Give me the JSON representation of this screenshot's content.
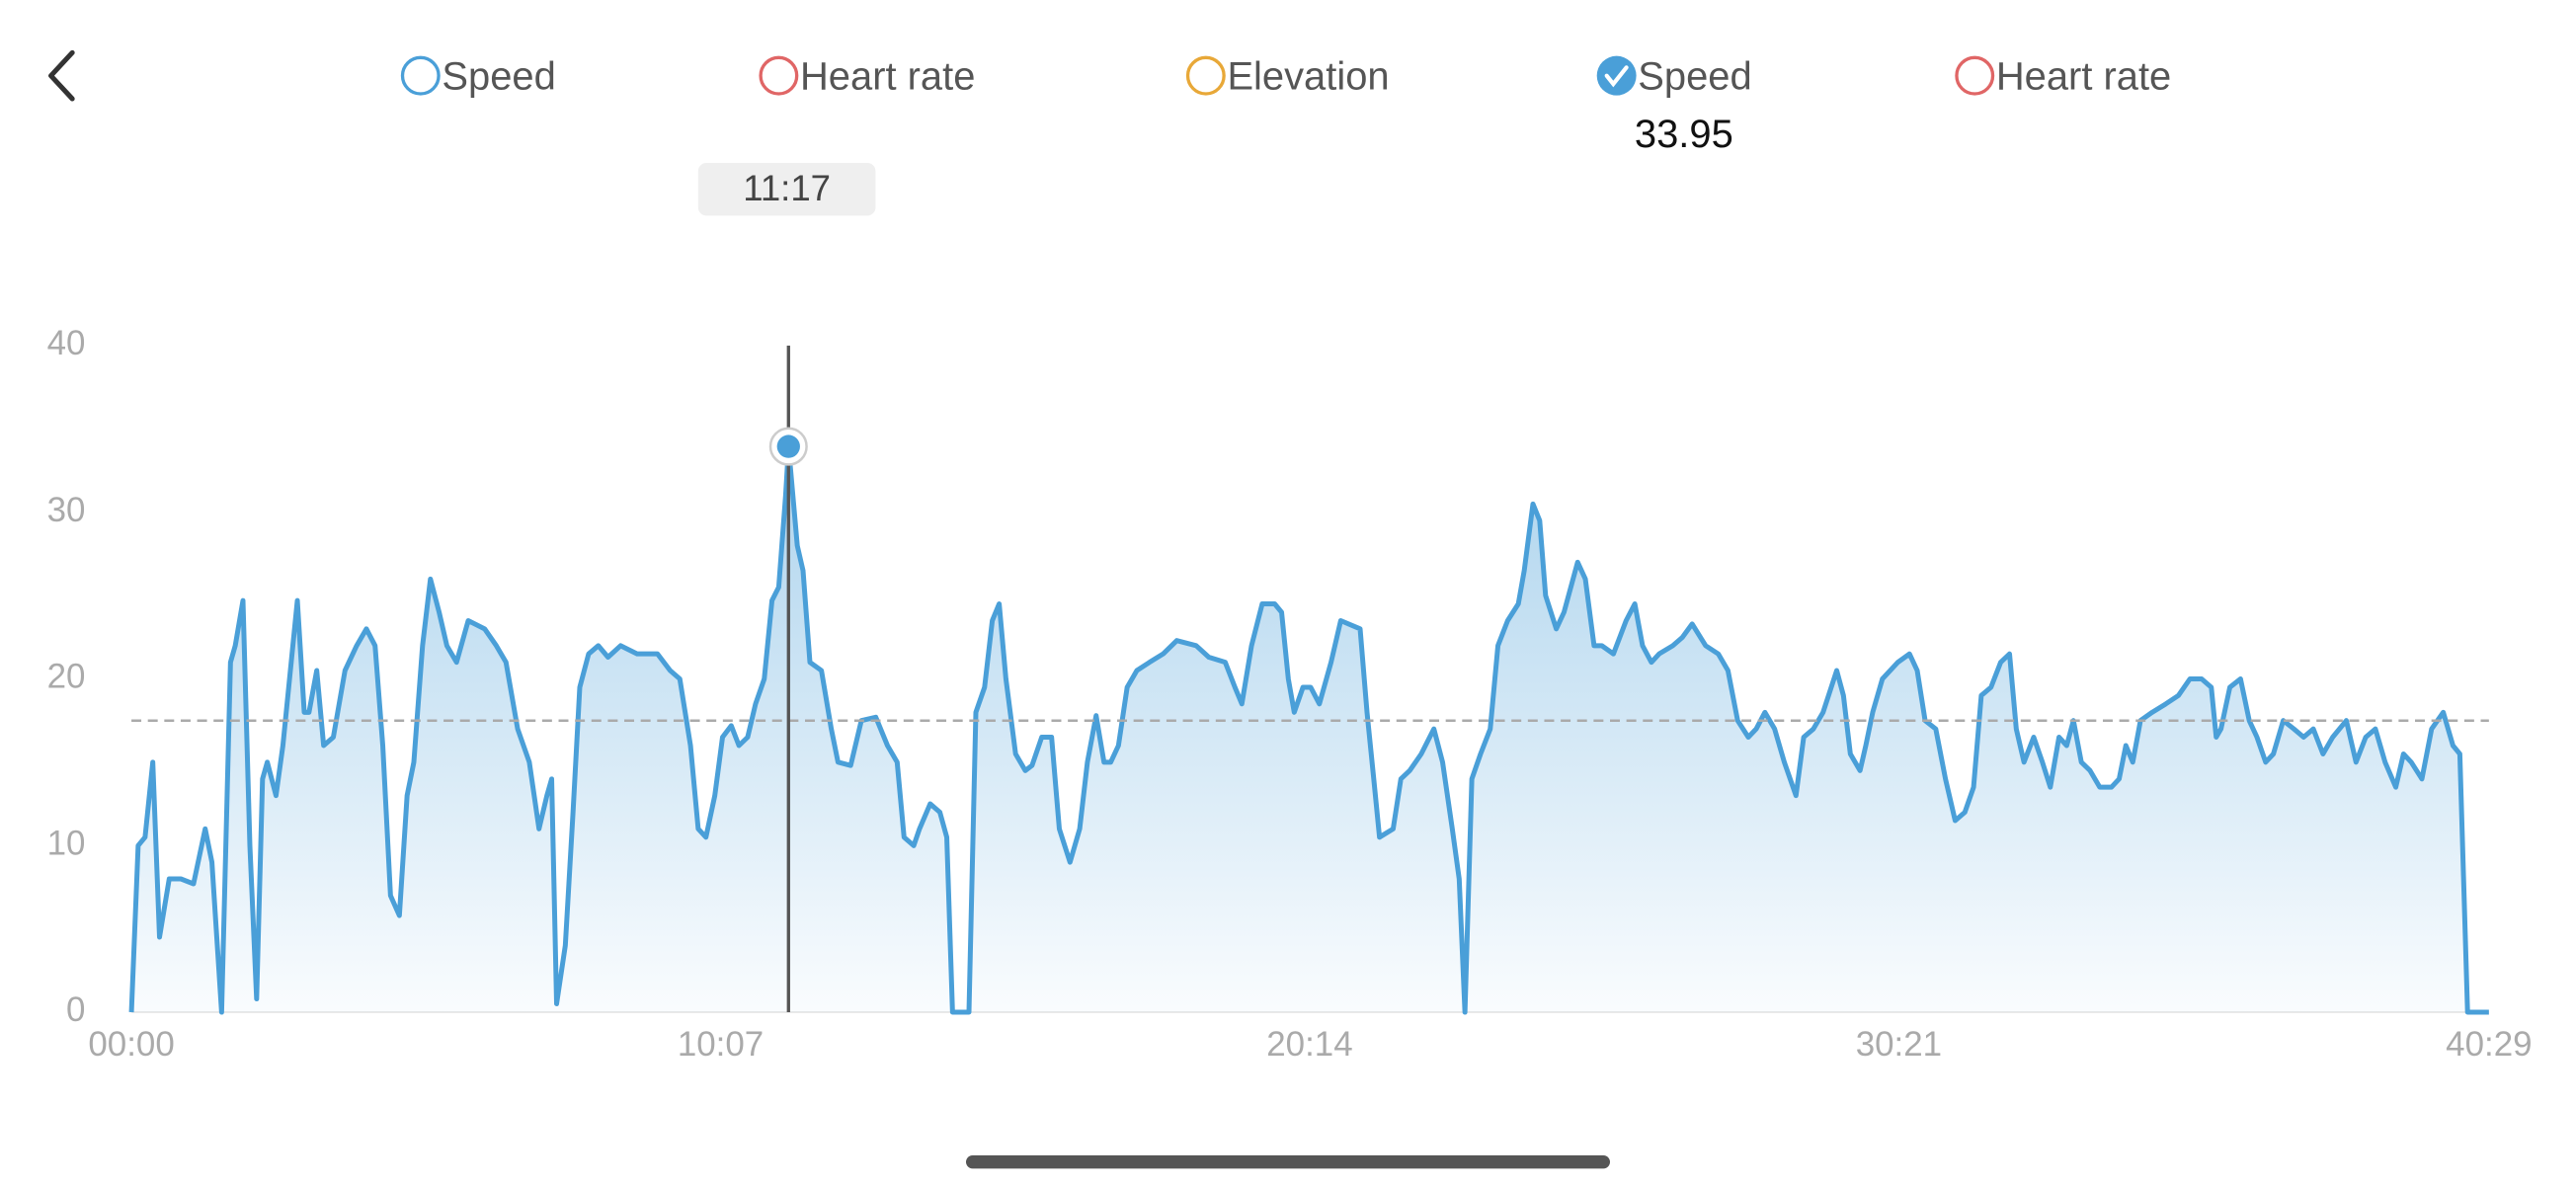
{
  "chart_data": {
    "type": "line",
    "metric_tabs": [
      {
        "label": "Speed",
        "color": "#4a9fd8"
      },
      {
        "label": "Heart rate",
        "color": "#e06666"
      },
      {
        "label": "Elevation",
        "color": "#e8a838"
      }
    ],
    "compare_tabs": [
      {
        "label": "Heart rate",
        "color": "#e06666"
      }
    ],
    "tooltip": {
      "time": "11:17",
      "x": 677,
      "value": 33.95
    },
    "reference_line": 17.5,
    "xlim": [
      0,
      2429
    ],
    "xticks": [
      {
        "value": 0,
        "label": "00:00"
      },
      {
        "value": 607,
        "label": "10:07"
      },
      {
        "value": 1214,
        "label": "20:14"
      },
      {
        "value": 1821,
        "label": "30:21"
      },
      {
        "value": 2429,
        "label": "40:29"
      }
    ],
    "ylim": [
      0,
      40
    ],
    "yticks": [
      0,
      10,
      20,
      30,
      40
    ],
    "grid": false,
    "x": [
      0,
      7,
      14,
      22,
      29,
      39,
      51,
      64,
      76,
      83,
      93,
      102,
      107,
      115,
      122,
      129,
      135,
      140,
      149,
      156,
      171,
      178,
      183,
      191,
      198,
      208,
      220,
      232,
      242,
      251,
      259,
      267,
      276,
      284,
      291,
      300,
      308,
      317,
      325,
      335,
      347,
      364,
      376,
      386,
      398,
      410,
      420,
      428,
      433,
      438,
      447,
      455,
      462,
      471,
      481,
      491,
      504,
      521,
      542,
      555,
      565,
      576,
      584,
      592,
      601,
      609,
      618,
      626,
      635,
      643,
      652,
      660,
      667,
      674,
      677,
      686,
      692,
      699,
      711,
      721,
      728,
      741,
      752,
      767,
      779,
      789,
      796,
      806,
      812,
      823,
      833,
      840,
      846,
      863,
      870,
      879,
      887,
      894,
      901,
      911,
      921,
      928,
      938,
      948,
      956,
      967,
      977,
      985,
      994,
      1002,
      1009,
      1017,
      1026,
      1036,
      1049,
      1063,
      1077,
      1097,
      1110,
      1127,
      1137,
      1144,
      1154,
      1165,
      1178,
      1185,
      1192,
      1198,
      1207,
      1215,
      1224,
      1236,
      1246,
      1266,
      1273,
      1280,
      1286,
      1300,
      1308,
      1317,
      1329,
      1342,
      1351,
      1361,
      1368,
      1374,
      1381,
      1390,
      1400,
      1408,
      1418,
      1429,
      1435,
      1444,
      1451,
      1457,
      1468,
      1476,
      1490,
      1498,
      1507,
      1515,
      1527,
      1540,
      1549,
      1557,
      1566,
      1574,
      1588,
      1598,
      1608,
      1622,
      1635,
      1645,
      1655,
      1666,
      1674,
      1683,
      1693,
      1703,
      1715,
      1723,
      1733,
      1743,
      1757,
      1764,
      1771,
      1781,
      1787,
      1794,
      1804,
      1820,
      1832,
      1840,
      1848,
      1859,
      1869,
      1879,
      1889,
      1898,
      1906,
      1916,
      1926,
      1935,
      1942,
      1950,
      1960,
      1969,
      1977,
      1986,
      1994,
      2001,
      2009,
      2018,
      2028,
      2040,
      2048,
      2055,
      2062,
      2070,
      2082,
      2096,
      2109,
      2121,
      2133,
      2143,
      2148,
      2153,
      2162,
      2173,
      2182,
      2190,
      2199,
      2207,
      2217,
      2228,
      2238,
      2248,
      2258,
      2268,
      2282,
      2292,
      2302,
      2312,
      2322,
      2333,
      2341,
      2349,
      2360,
      2370,
      2382,
      2392,
      2399,
      2407,
      2429
    ],
    "series": [
      {
        "name": "Speed",
        "color": "#4a9fd8",
        "values": [
          0,
          10,
          10.5,
          15,
          4.5,
          8,
          8,
          7.7,
          11,
          9,
          0,
          21,
          22,
          24.7,
          10,
          0.8,
          14,
          15,
          13,
          16,
          24.7,
          18,
          18,
          20.5,
          16,
          16.5,
          20.5,
          22,
          23,
          22,
          16,
          7,
          5.8,
          13,
          15,
          22,
          26,
          24,
          22,
          21,
          23.5,
          23,
          22,
          21,
          17,
          15,
          11,
          13,
          14,
          0.5,
          4,
          12,
          19.5,
          21.5,
          22,
          21.3,
          22,
          21.5,
          21.5,
          20.5,
          20,
          16,
          11,
          10.5,
          13,
          16.5,
          17.2,
          16,
          16.5,
          18.5,
          20,
          24.7,
          25.5,
          31,
          33.95,
          28,
          26.5,
          21,
          20.5,
          17,
          15,
          14.8,
          17.5,
          17.7,
          16,
          15,
          10.5,
          10,
          11,
          12.5,
          12,
          10.5,
          0,
          0,
          18,
          19.5,
          23.5,
          24.5,
          20,
          15.5,
          14.5,
          14.8,
          16.5,
          16.5,
          11,
          9,
          11,
          15,
          17.8,
          15,
          15,
          16,
          19.5,
          20.5,
          21,
          21.5,
          22.3,
          22,
          21.3,
          21,
          19.5,
          18.5,
          22,
          24.5,
          24.5,
          24,
          20,
          18,
          19.5,
          19.5,
          18.5,
          21,
          23.5,
          23,
          18,
          14,
          10.5,
          11,
          14,
          14.5,
          15.5,
          17,
          15,
          11,
          8,
          0,
          14,
          15.5,
          17,
          22,
          23.5,
          24.5,
          26.5,
          30.5,
          29.5,
          25,
          23,
          24,
          27,
          26,
          22,
          22,
          21.5,
          23.5,
          24.5,
          22,
          21,
          21.5,
          22,
          22.5,
          23.3,
          22,
          21.5,
          20.5,
          17.5,
          16.5,
          17,
          18,
          17,
          15,
          13,
          16.5,
          17,
          18,
          20.5,
          19,
          15.5,
          14.5,
          16,
          18,
          20,
          21,
          21.5,
          20.5,
          17.5,
          17,
          14,
          11.5,
          12,
          13.5,
          19,
          19.5,
          21,
          21.5,
          17,
          15,
          16.5,
          15,
          13.5,
          16.5,
          16,
          17.5,
          15,
          14.5,
          13.5,
          13.5,
          14,
          16,
          15,
          17.5,
          18,
          18.5,
          19,
          20,
          20,
          19.5,
          16.5,
          17,
          19.5,
          20,
          17.5,
          16.5,
          15,
          15.5,
          17.5,
          17,
          16.5,
          17,
          15.5,
          16.5,
          17.5,
          15,
          16.5,
          17,
          15,
          13.5,
          15.5,
          15,
          14,
          17,
          18,
          16,
          15.5,
          0,
          0
        ]
      }
    ]
  }
}
